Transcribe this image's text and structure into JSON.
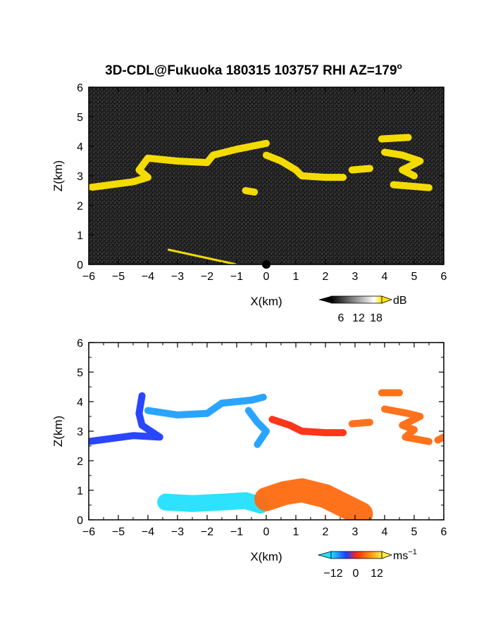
{
  "title": {
    "text": "3D-CDL@Fukuoka 180315 103757 RHI AZ=179",
    "suffix": "o"
  },
  "colors": {
    "background_dark": "#1a1a1a",
    "cloud_yellow": "#ffe600",
    "blue": "#1e3cff",
    "light_blue": "#1fa0ff",
    "cyan": "#22e0ff",
    "red": "#ff2a10",
    "orange": "#ff6a10",
    "yellow": "#ffdd22"
  },
  "chart_data": [
    {
      "type": "heatmap",
      "panel": "top",
      "xlabel": "X(km)",
      "ylabel": "Z(km)",
      "xlim": [
        -6,
        6
      ],
      "ylim": [
        0,
        6
      ],
      "xticks": [
        "−6",
        "−5",
        "−4",
        "−3",
        "−2",
        "−1",
        "0",
        "1",
        "2",
        "3",
        "4",
        "5",
        "6"
      ],
      "yticks": [
        "0",
        "1",
        "2",
        "3",
        "4",
        "5",
        "6"
      ],
      "colorbar": {
        "unit": "dB",
        "ticks": [
          "6",
          "12",
          "18"
        ]
      },
      "features": [
        {
          "name": "cloud-layer",
          "points": [
            [
              -6.0,
              2.6
            ],
            [
              -4.5,
              2.8
            ],
            [
              -4.0,
              2.95
            ],
            [
              -4.3,
              3.2
            ],
            [
              -4.0,
              3.6
            ],
            [
              -3.0,
              3.5
            ],
            [
              -2.0,
              3.45
            ],
            [
              -1.8,
              3.7
            ],
            [
              -1.0,
              3.9
            ],
            [
              -0.5,
              4.0
            ],
            [
              0.0,
              4.1
            ]
          ]
        },
        {
          "name": "cloud-layer",
          "points": [
            [
              0.0,
              3.7
            ],
            [
              0.5,
              3.5
            ],
            [
              1.0,
              3.2
            ],
            [
              1.2,
              3.0
            ],
            [
              2.0,
              2.95
            ],
            [
              2.6,
              2.95
            ]
          ]
        },
        {
          "name": "cloud-patch",
          "points": [
            [
              2.9,
              3.2
            ],
            [
              3.5,
              3.25
            ]
          ]
        },
        {
          "name": "cloud-patch",
          "points": [
            [
              -0.7,
              2.5
            ],
            [
              -0.4,
              2.45
            ]
          ]
        },
        {
          "name": "cloud-patch",
          "points": [
            [
              3.9,
              4.25
            ],
            [
              4.8,
              4.3
            ]
          ]
        },
        {
          "name": "cloud-patch",
          "points": [
            [
              4.0,
              3.8
            ],
            [
              4.6,
              3.7
            ],
            [
              5.2,
              3.5
            ],
            [
              4.6,
              3.2
            ],
            [
              5.0,
              3.0
            ]
          ]
        },
        {
          "name": "cloud-patch",
          "points": [
            [
              4.3,
              2.7
            ],
            [
              5.5,
              2.6
            ]
          ]
        },
        {
          "name": "surface-line",
          "points": [
            [
              -3.3,
              0.5
            ],
            [
              -1.0,
              0.0
            ]
          ]
        }
      ]
    },
    {
      "type": "heatmap",
      "panel": "bottom",
      "xlabel": "X(km)",
      "ylabel": "Z(km)",
      "xlim": [
        -6,
        6
      ],
      "ylim": [
        0,
        6
      ],
      "xticks": [
        "−6",
        "−5",
        "−4",
        "−3",
        "−2",
        "−1",
        "0",
        "1",
        "2",
        "3",
        "4",
        "5",
        "6"
      ],
      "yticks": [
        "0",
        "1",
        "2",
        "3",
        "4",
        "5",
        "6"
      ],
      "colorbar": {
        "unit": "ms",
        "unit_exp": "−1",
        "ticks": [
          "−12",
          "0",
          "12"
        ]
      },
      "features": [
        {
          "name": "velocity-layer",
          "value": -6,
          "points": [
            [
              -6.0,
              2.65
            ],
            [
              -4.5,
              2.85
            ],
            [
              -3.6,
              2.8
            ],
            [
              -4.2,
              3.2
            ],
            [
              -4.3,
              3.6
            ],
            [
              -4.2,
              4.2
            ]
          ]
        },
        {
          "name": "velocity-layer",
          "value": -10,
          "points": [
            [
              -4.0,
              3.7
            ],
            [
              -3.0,
              3.55
            ],
            [
              -2.0,
              3.6
            ],
            [
              -1.5,
              3.95
            ],
            [
              -0.5,
              4.05
            ],
            [
              -0.1,
              4.15
            ]
          ]
        },
        {
          "name": "velocity-layer",
          "value": -10,
          "points": [
            [
              -0.6,
              3.7
            ],
            [
              -0.3,
              3.3
            ],
            [
              0.0,
              3.0
            ],
            [
              -0.3,
              2.55
            ]
          ]
        },
        {
          "name": "velocity-layer",
          "value": 9,
          "points": [
            [
              0.2,
              3.4
            ],
            [
              0.8,
              3.2
            ],
            [
              1.2,
              3.0
            ],
            [
              2.0,
              2.95
            ],
            [
              2.6,
              2.95
            ]
          ]
        },
        {
          "name": "velocity-layer",
          "value": 11,
          "points": [
            [
              2.9,
              3.25
            ],
            [
              3.5,
              3.3
            ]
          ]
        },
        {
          "name": "velocity-layer",
          "value": 12,
          "points": [
            [
              3.9,
              4.3
            ],
            [
              4.5,
              4.3
            ]
          ]
        },
        {
          "name": "velocity-layer",
          "value": 12,
          "points": [
            [
              4.0,
              3.75
            ],
            [
              4.8,
              3.6
            ],
            [
              5.2,
              3.5
            ],
            [
              4.6,
              3.2
            ],
            [
              5.0,
              3.05
            ],
            [
              4.7,
              2.8
            ],
            [
              5.5,
              2.65
            ]
          ]
        },
        {
          "name": "velocity-layer",
          "value": 12,
          "points": [
            [
              5.8,
              2.7
            ],
            [
              6.0,
              2.8
            ]
          ]
        },
        {
          "name": "low-level-negative",
          "value": -12,
          "points": [
            [
              -3.4,
              0.6
            ],
            [
              -2.5,
              0.55
            ],
            [
              -1.5,
              0.6
            ],
            [
              -0.7,
              0.65
            ],
            [
              -0.2,
              0.5
            ]
          ]
        },
        {
          "name": "low-level-positive",
          "value": 12,
          "points": [
            [
              0.0,
              0.7
            ],
            [
              0.6,
              0.9
            ],
            [
              1.2,
              1.0
            ],
            [
              2.0,
              0.8
            ],
            [
              2.8,
              0.4
            ],
            [
              3.2,
              0.2
            ]
          ]
        }
      ]
    }
  ]
}
